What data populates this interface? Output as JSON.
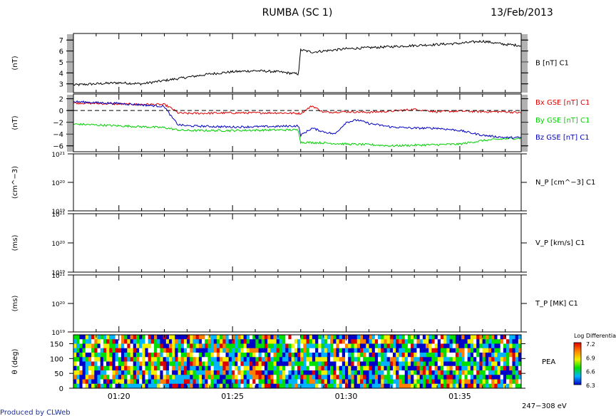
{
  "header": {
    "title": "RUMBA (SC 1)",
    "date": "13/Feb/2013"
  },
  "footer": {
    "credit": "Produced by CLWeb"
  },
  "time_axis": {
    "ticks": [
      "01:20",
      "01:25",
      "01:30",
      "01:35"
    ],
    "range_minutes": [
      78,
      97.7
    ],
    "tick_minutes": [
      80,
      85,
      90,
      95
    ]
  },
  "chart_data": [
    {
      "type": "line",
      "ylabel": "(nT)",
      "ylim": [
        2.2,
        7.6
      ],
      "yticks": [
        "3",
        "4",
        "5",
        "6",
        "7"
      ],
      "series": [
        {
          "name": "B [nT] C1",
          "color": "#000000",
          "x": [
            78,
            79,
            80,
            81,
            82,
            83,
            84,
            85,
            86,
            87,
            87.9,
            88.0,
            88.5,
            89,
            90,
            91,
            92,
            93,
            94,
            95,
            96,
            97,
            97.7
          ],
          "y": [
            2.9,
            3.0,
            3.1,
            3.0,
            3.3,
            3.6,
            3.9,
            4.1,
            4.2,
            4.1,
            3.9,
            6.1,
            5.9,
            6.0,
            6.2,
            6.3,
            6.4,
            6.5,
            6.6,
            6.7,
            6.9,
            6.6,
            6.5
          ]
        }
      ]
    },
    {
      "type": "line",
      "ylabel": "(nT)",
      "ylim": [
        -7,
        2.8
      ],
      "yticks": [
        "2",
        "0",
        "−2",
        "−4",
        "−6"
      ],
      "reference_line": 0,
      "series": [
        {
          "name": "Bx GSE [nT] C1",
          "color": "#e00000",
          "x": [
            78,
            80,
            82,
            82.3,
            82.6,
            83,
            85,
            87,
            88,
            88.5,
            89,
            90,
            91,
            92,
            93,
            94,
            95,
            96,
            97,
            97.7
          ],
          "y": [
            1.3,
            1.1,
            1.0,
            0.4,
            -0.4,
            -0.5,
            -0.4,
            -0.4,
            -0.5,
            0.8,
            -0.3,
            -0.2,
            -0.3,
            -0.1,
            0.2,
            -0.2,
            -0.1,
            -0.2,
            -0.2,
            -0.4
          ]
        },
        {
          "name": "By GSE [nT] C1",
          "color": "#00d000",
          "x": [
            78,
            80,
            82,
            82.3,
            82.6,
            83,
            85,
            87,
            87.9,
            88.0,
            89,
            90,
            91,
            92,
            93,
            94,
            95,
            96,
            97,
            97.7
          ],
          "y": [
            -2.3,
            -2.6,
            -2.9,
            -3.1,
            -3.3,
            -3.4,
            -3.4,
            -3.3,
            -3.3,
            -5.4,
            -5.5,
            -5.7,
            -5.8,
            -6.0,
            -5.9,
            -5.8,
            -5.7,
            -5.1,
            -4.8,
            -4.7
          ]
        },
        {
          "name": "Bz GSE [nT] C1",
          "color": "#0000c0",
          "x": [
            78,
            80,
            82,
            82.3,
            82.6,
            83,
            85,
            87,
            87.9,
            88.0,
            88.5,
            89,
            89.5,
            90,
            90.5,
            91,
            92,
            93,
            94,
            95,
            96,
            97,
            97.7
          ],
          "y": [
            1.5,
            1.2,
            0.7,
            -1.0,
            -2.4,
            -2.6,
            -2.8,
            -2.7,
            -2.6,
            -4.2,
            -3.0,
            -3.6,
            -4.0,
            -2.0,
            -1.6,
            -2.2,
            -2.8,
            -3.0,
            -3.0,
            -3.4,
            -4.2,
            -4.6,
            -4.6
          ]
        }
      ]
    },
    {
      "type": "line",
      "ylabel": "(cm^−3)",
      "yscale": "log",
      "ylim": [
        1e+19,
        1e+21
      ],
      "yticks": [
        "10¹⁹",
        "10²⁰",
        "10²¹"
      ],
      "series": [
        {
          "name": "N_P [cm^−3] C1",
          "values": []
        }
      ]
    },
    {
      "type": "line",
      "ylabel": "(ms)",
      "yscale": "log",
      "ylim": [
        1e+19,
        1e+21
      ],
      "yticks": [
        "10¹⁹",
        "10²⁰",
        "10²¹"
      ],
      "series": [
        {
          "name": "V_P [km/s] C1",
          "values": []
        }
      ]
    },
    {
      "type": "line",
      "ylabel": "(ms)",
      "yscale": "log",
      "ylim": [
        1e+19,
        1e+21
      ],
      "yticks": [
        "10¹⁹",
        "10²⁰",
        "10²¹"
      ],
      "series": [
        {
          "name": "T_P [MK] C1",
          "values": []
        }
      ]
    },
    {
      "type": "heatmap",
      "ylabel": "θ (deg)",
      "ylim": [
        0,
        180
      ],
      "yticks": [
        "0",
        "50",
        "100",
        "150"
      ],
      "label": "PEA",
      "energy_label": "247−308 eV",
      "colorbar": {
        "title": "Log Differential",
        "range": [
          6.3,
          7.2
        ],
        "ticks": [
          "7.2",
          "6.9",
          "6.6",
          "6.3"
        ],
        "colors": [
          "#0000c8",
          "#00b4ff",
          "#00e000",
          "#f0f000",
          "#ff8000",
          "#e00000"
        ]
      },
      "pitch_bins": 12,
      "time_bins": 150
    }
  ]
}
